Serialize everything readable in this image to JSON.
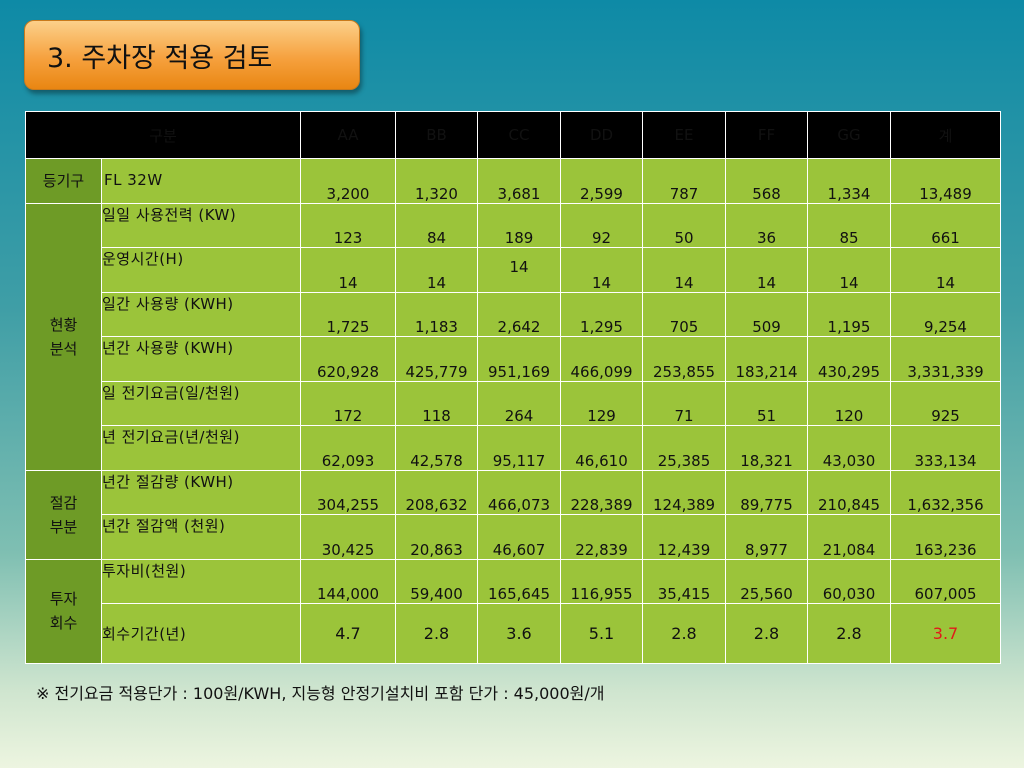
{
  "title": "3. 주차장 적용 검토",
  "table": {
    "header": [
      "구분",
      "AA",
      "BB",
      "CC",
      "DD",
      "EE",
      "FF",
      "GG",
      "계"
    ],
    "groups": {
      "fixture": "등기구",
      "status_line1": "현황",
      "status_line2": "분석",
      "saving_line1": "절감",
      "saving_line2": "부분",
      "invest_line1": "투자",
      "invest_line2": "회수"
    },
    "rows": [
      {
        "label": "FL 32W",
        "values": [
          "3,200",
          "1,320",
          "3,681",
          "2,599",
          "787",
          "568",
          "1,334",
          "13,489"
        ]
      },
      {
        "label": "일일 사용전력 (KW)",
        "values": [
          "123",
          "84",
          "189",
          "92",
          "50",
          "36",
          "85",
          "661"
        ]
      },
      {
        "label": "운영시간(H)",
        "values": [
          "14",
          "14",
          "14",
          "14",
          "14",
          "14",
          "14",
          "14"
        ]
      },
      {
        "label": "일간 사용량 (KWH)",
        "values": [
          "1,725",
          "1,183",
          "2,642",
          "1,295",
          "705",
          "509",
          "1,195",
          "9,254"
        ]
      },
      {
        "label": "년간 사용량 (KWH)",
        "values": [
          "620,928",
          "425,779",
          "951,169",
          "466,099",
          "253,855",
          "183,214",
          "430,295",
          "3,331,339"
        ]
      },
      {
        "label": "일 전기요금(일/천원)",
        "values": [
          "172",
          "118",
          "264",
          "129",
          "71",
          "51",
          "120",
          "925"
        ]
      },
      {
        "label": "년 전기요금(년/천원)",
        "values": [
          "62,093",
          "42,578",
          "95,117",
          "46,610",
          "25,385",
          "18,321",
          "43,030",
          "333,134"
        ]
      },
      {
        "label": "년간 절감량 (KWH)",
        "values": [
          "304,255",
          "208,632",
          "466,073",
          "228,389",
          "124,389",
          "89,775",
          "210,845",
          "1,632,356"
        ]
      },
      {
        "label": "년간 절감액 (천원)",
        "values": [
          "30,425",
          "20,863",
          "46,607",
          "22,839",
          "12,439",
          "8,977",
          "21,084",
          "163,236"
        ]
      },
      {
        "label": "투자비(천원)",
        "values": [
          "144,000",
          "59,400",
          "165,645",
          "116,955",
          "35,415",
          "25,560",
          "60,030",
          "607,005"
        ]
      },
      {
        "label": "회수기간(년)",
        "values": [
          "4.7",
          "2.8",
          "3.6",
          "5.1",
          "2.8",
          "2.8",
          "2.8",
          "3.7"
        ]
      }
    ]
  },
  "footnote": "※ 전기요금 적용단가 : 100원/KWH,  지능형 안정기설치비 포함 단가 : 45,000원/개",
  "colors": {
    "highlight_value": "#e01a1a",
    "group_cell": "#6e9b26",
    "data_cell": "#9bc43a",
    "header": "#000000"
  }
}
